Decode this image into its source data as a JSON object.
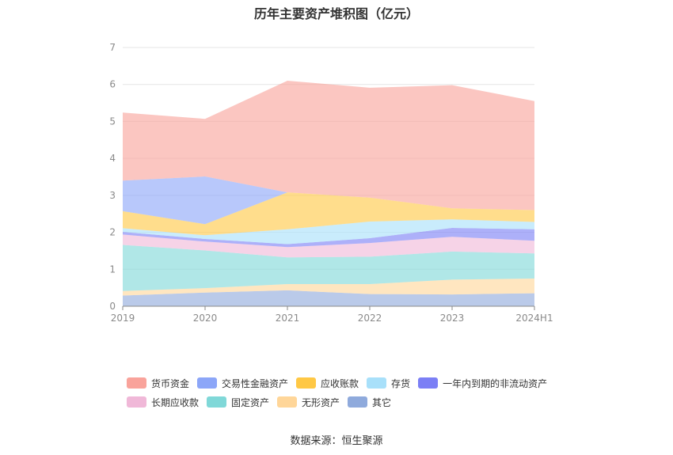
{
  "title": "历年主要资产堆积图（亿元）",
  "source": "数据来源：恒生聚源",
  "chart_data": {
    "type": "area",
    "stacked": true,
    "categories": [
      "2019",
      "2020",
      "2021",
      "2022",
      "2023",
      "2024H1"
    ],
    "ylim": [
      0,
      7
    ],
    "yticks": [
      0,
      1,
      2,
      3,
      4,
      5,
      6,
      7
    ],
    "grid": true,
    "legend_position": "bottom",
    "series": [
      {
        "name": "其它",
        "color": "#8FAADC",
        "values": [
          0.29,
          0.37,
          0.43,
          0.33,
          0.32,
          0.35
        ]
      },
      {
        "name": "无形资产",
        "color": "#FFD699",
        "values": [
          0.12,
          0.12,
          0.17,
          0.27,
          0.4,
          0.4
        ]
      },
      {
        "name": "固定资产",
        "color": "#80D8D8",
        "values": [
          1.25,
          1.02,
          0.72,
          0.74,
          0.76,
          0.68
        ]
      },
      {
        "name": "长期应收款",
        "color": "#F0B8D8",
        "values": [
          0.28,
          0.24,
          0.28,
          0.37,
          0.4,
          0.34
        ]
      },
      {
        "name": "一年内到期的非流动资产",
        "color": "#7B7FF5",
        "values": [
          0.07,
          0.07,
          0.08,
          0.13,
          0.24,
          0.31
        ]
      },
      {
        "name": "存货",
        "color": "#A8E0FA",
        "values": [
          0.1,
          0.1,
          0.4,
          0.45,
          0.23,
          0.2
        ]
      },
      {
        "name": "应收账款",
        "color": "#FFC845",
        "values": [
          0.46,
          0.3,
          1.0,
          0.65,
          0.3,
          0.32
        ]
      },
      {
        "name": "交易性金融资产",
        "color": "#8CA6F8",
        "values": [
          0.83,
          1.29,
          0.0,
          0.0,
          0.0,
          0.0
        ]
      },
      {
        "name": "货币资金",
        "color": "#F9A39B",
        "values": [
          1.84,
          1.56,
          3.02,
          2.97,
          3.33,
          2.95
        ]
      }
    ]
  },
  "legend_rows": [
    [
      {
        "name": "货币资金",
        "color": "#F9A39B"
      },
      {
        "name": "交易性金融资产",
        "color": "#8CA6F8"
      },
      {
        "name": "应收账款",
        "color": "#FFC845"
      },
      {
        "name": "存货",
        "color": "#A8E0FA"
      },
      {
        "name": "一年内到期的非流动资产",
        "color": "#7B7FF5"
      }
    ],
    [
      {
        "name": "长期应收款",
        "color": "#F0B8D8"
      },
      {
        "name": "固定资产",
        "color": "#80D8D8"
      },
      {
        "name": "无形资产",
        "color": "#FFD699"
      },
      {
        "name": "其它",
        "color": "#8FAADC"
      }
    ]
  ]
}
